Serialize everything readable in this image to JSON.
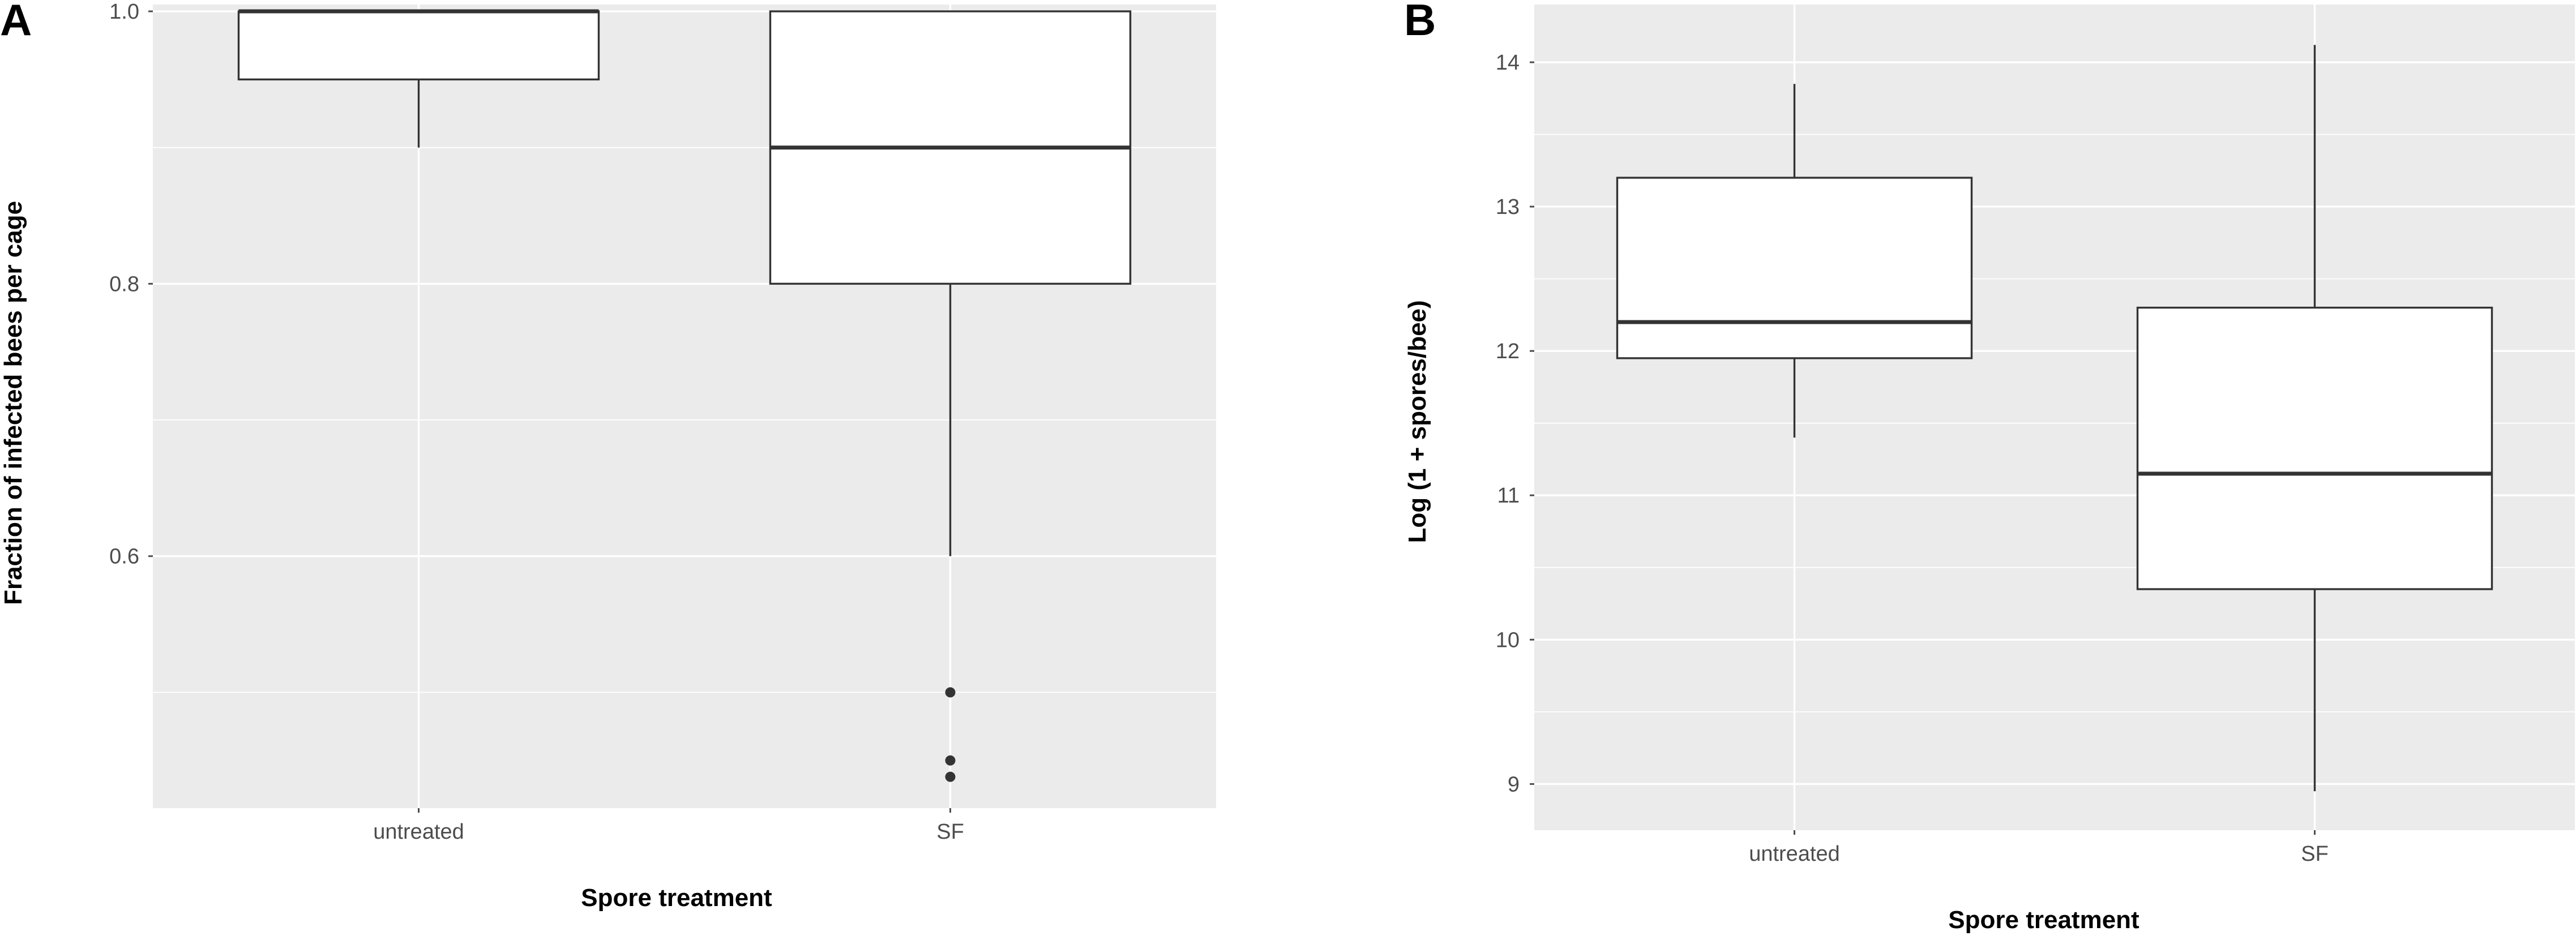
{
  "chart_data": [
    {
      "type": "box",
      "panel_label": "A",
      "title": "",
      "xlabel": "Spore treatment",
      "ylabel": "Fraction of infected bees per cage",
      "categories": [
        "untreated",
        "SF"
      ],
      "ylim": [
        0.415,
        1.005
      ],
      "yticks": [
        0.6,
        0.8,
        1.0
      ],
      "ytick_labels": [
        "0.6",
        "0.8",
        "1.0"
      ],
      "yminor": [
        0.5,
        0.7,
        0.9
      ],
      "grid": true,
      "boxes": [
        {
          "category": "untreated",
          "whisker_low": 0.9,
          "q1": 0.95,
          "median": 1.0,
          "q3": 1.0,
          "whisker_high": 1.0,
          "outliers": []
        },
        {
          "category": "SF",
          "whisker_low": 0.6,
          "q1": 0.8,
          "median": 0.9,
          "q3": 1.0,
          "whisker_high": 1.0,
          "outliers": [
            0.5,
            0.45,
            0.438
          ]
        }
      ],
      "colors": {
        "panel": "#ebebeb",
        "box_fill": "#ffffff",
        "line": "#333333"
      }
    },
    {
      "type": "box",
      "panel_label": "B",
      "title": "",
      "xlabel": "Spore treatment",
      "ylabel": "Log (1 + spores/bee)",
      "categories": [
        "untreated",
        "SF"
      ],
      "ylim": [
        8.68,
        14.4
      ],
      "yticks": [
        9,
        10,
        11,
        12,
        13,
        14
      ],
      "ytick_labels": [
        "9",
        "10",
        "11",
        "12",
        "13",
        "14"
      ],
      "yminor": [
        9.5,
        10.5,
        11.5,
        12.5,
        13.5
      ],
      "grid": true,
      "boxes": [
        {
          "category": "untreated",
          "whisker_low": 11.4,
          "q1": 11.95,
          "median": 12.2,
          "q3": 13.2,
          "whisker_high": 13.85,
          "outliers": []
        },
        {
          "category": "SF",
          "whisker_low": 8.95,
          "q1": 10.35,
          "median": 11.15,
          "q3": 12.3,
          "whisker_high": 14.12,
          "outliers": []
        }
      ],
      "colors": {
        "panel": "#ebebeb",
        "box_fill": "#ffffff",
        "line": "#333333"
      }
    }
  ]
}
